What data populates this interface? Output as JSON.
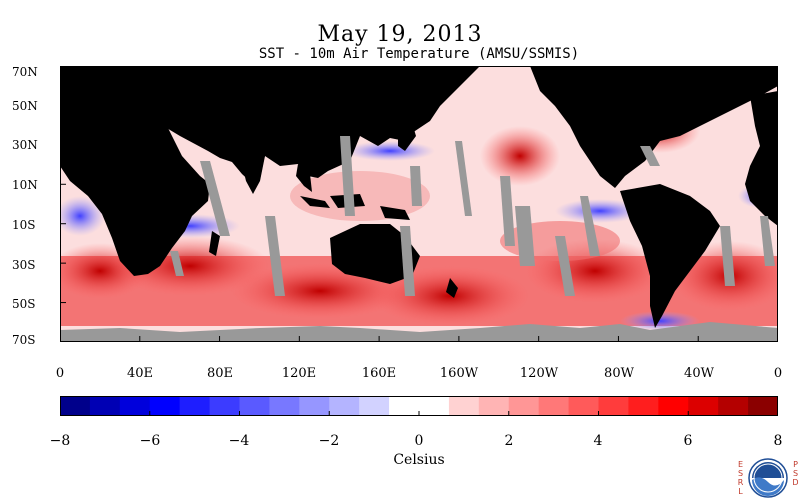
{
  "header": {
    "date": "May 19, 2013",
    "subtitle": "SST - 10m Air Temperature (AMSU/SSMIS)"
  },
  "map": {
    "lat_labels": [
      "70N",
      "50N",
      "30N",
      "10N",
      "10S",
      "30S",
      "50S",
      "70S"
    ],
    "lon_labels": [
      "0",
      "40E",
      "80E",
      "120E",
      "160E",
      "160W",
      "120W",
      "80W",
      "40W",
      "0"
    ],
    "colors": {
      "land": "#000000",
      "missing": "#999999",
      "background_ocean": "#fcdede"
    }
  },
  "colorbar": {
    "tick_labels": [
      "−8",
      "−6",
      "−4",
      "−2",
      "0",
      "2",
      "4",
      "6",
      "8"
    ],
    "colors": [
      "#00008b",
      "#0000b4",
      "#0000dc",
      "#0000ff",
      "#1e1eff",
      "#3c3cff",
      "#5a5aff",
      "#7878ff",
      "#9696ff",
      "#b4b4ff",
      "#d2d2ff",
      "#ffffff",
      "#ffffff",
      "#ffd2d2",
      "#ffb4b4",
      "#ff9696",
      "#ff7878",
      "#ff5a5a",
      "#ff3c3c",
      "#ff1e1e",
      "#ff0000",
      "#dc0000",
      "#b40000",
      "#8b0000"
    ],
    "units": "Celsius"
  },
  "logo": {
    "left_text": "ESRL",
    "right_text": "PSD",
    "name": "NOAA"
  }
}
